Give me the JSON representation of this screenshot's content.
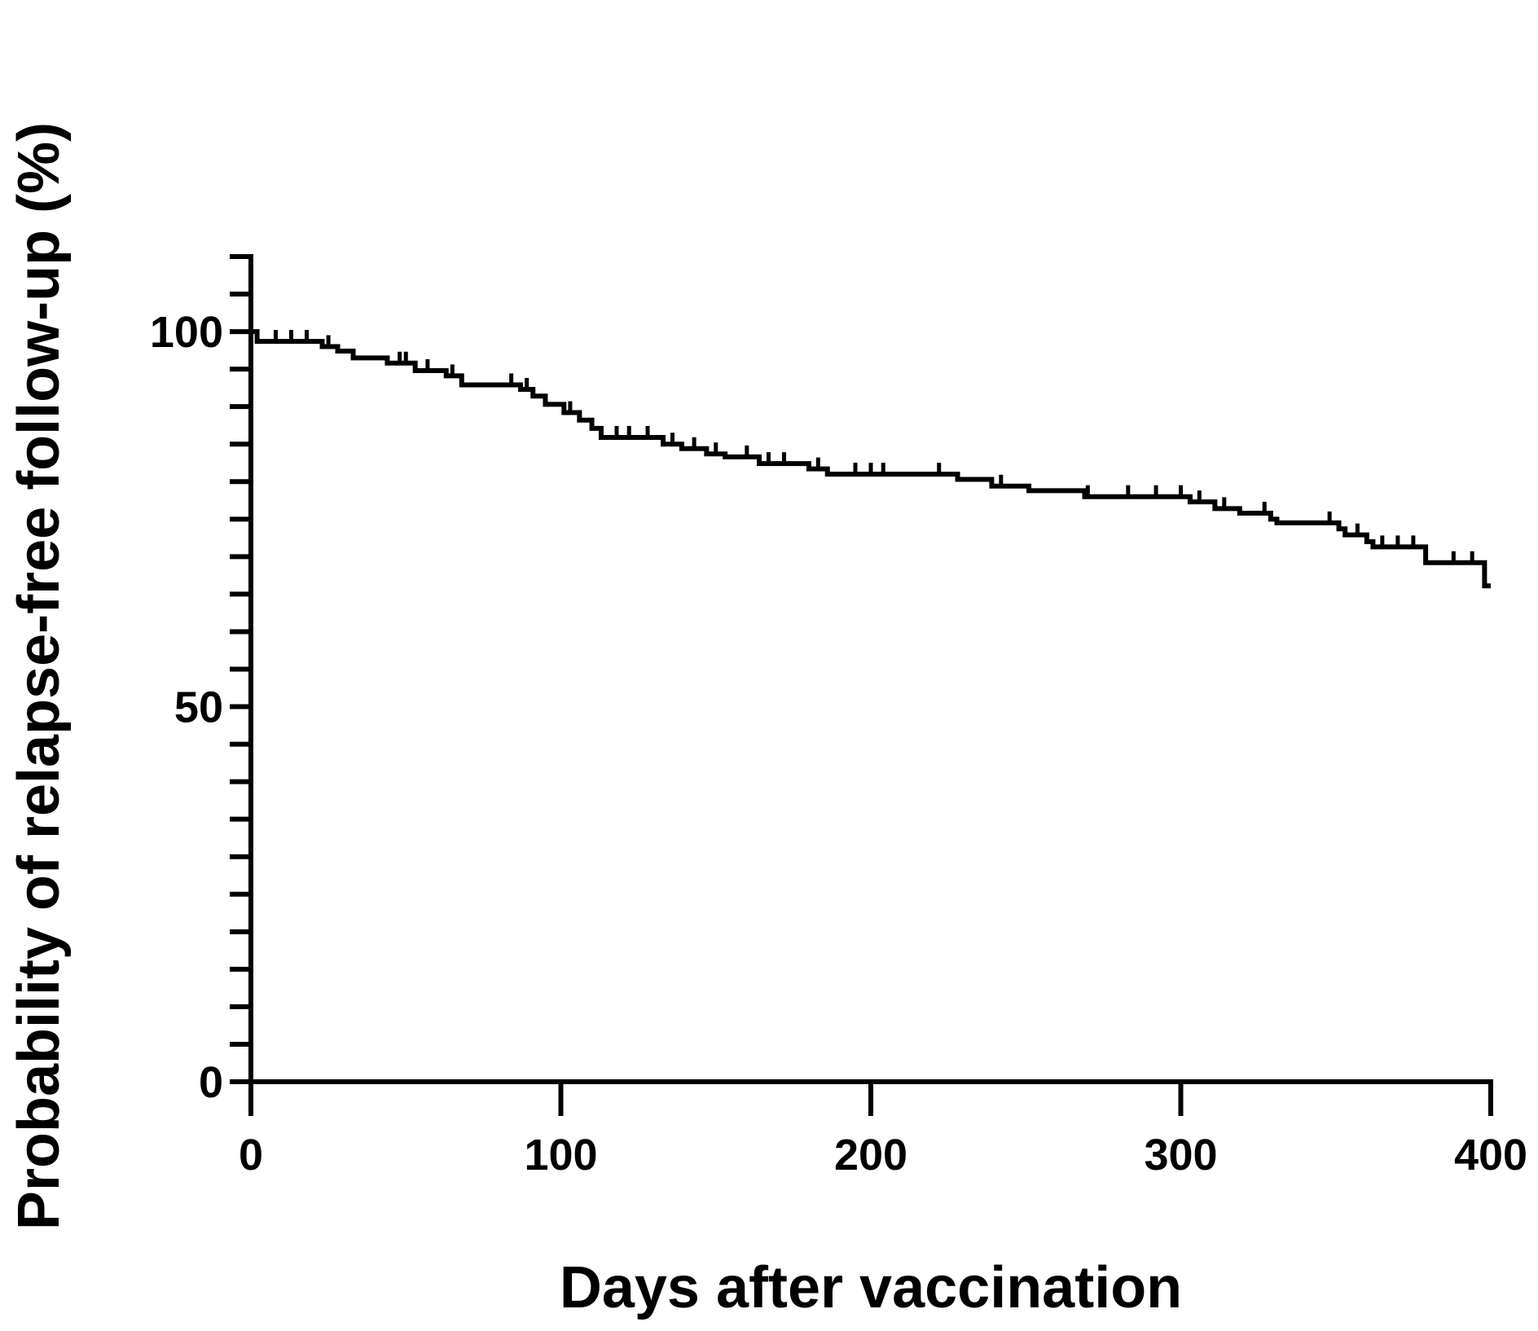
{
  "chart_data": {
    "type": "line",
    "step": "post",
    "x_label": "Days after vaccination",
    "y_label": "Probability of relapse-free follow-up (%)",
    "xlim": [
      0,
      400
    ],
    "xticks": [
      0,
      100,
      200,
      300,
      400
    ],
    "ylim": [
      0,
      110
    ],
    "yticks": [
      0,
      50,
      100
    ],
    "yminorticks": [
      5,
      10,
      15,
      20,
      25,
      30,
      35,
      40,
      45,
      55,
      60,
      65,
      70,
      75,
      80,
      85,
      90,
      95,
      105,
      110
    ],
    "x": [
      0,
      2,
      23,
      28,
      33,
      44,
      53,
      63,
      68,
      87,
      91,
      95,
      101,
      106,
      110,
      113,
      133,
      139,
      147,
      153,
      164,
      180,
      186,
      228,
      239,
      251,
      269,
      303,
      311,
      319,
      329,
      331,
      351,
      353,
      360,
      362,
      379,
      398,
      400
    ],
    "series": [
      {
        "color": "#000000",
        "values": [
          100,
          98.7,
          98.0,
          97.4,
          96.5,
          95.8,
          94.8,
          94.1,
          92.9,
          92.3,
          91.4,
          90.3,
          89.2,
          88.2,
          87.1,
          85.9,
          85.0,
          84.4,
          83.7,
          83.3,
          82.4,
          81.7,
          81.0,
          80.3,
          79.4,
          78.8,
          78.0,
          77.3,
          76.4,
          75.8,
          75.0,
          74.5,
          73.7,
          72.9,
          72.0,
          71.3,
          69.2,
          66.1,
          66.1
        ]
      }
    ],
    "censored": {
      "x": [
        8,
        13,
        18,
        25,
        48,
        50,
        57,
        65,
        84,
        89,
        103,
        118,
        122,
        128,
        136,
        143,
        150,
        160,
        167,
        172,
        183,
        195,
        200,
        204,
        222,
        242,
        270,
        283,
        292,
        300,
        306,
        314,
        327,
        348,
        357,
        365,
        370,
        375,
        388,
        394
      ],
      "values": [
        98.7,
        98.7,
        98.7,
        98.0,
        95.8,
        95.8,
        94.8,
        94.1,
        92.9,
        92.3,
        89.2,
        85.9,
        85.9,
        85.9,
        85.0,
        84.4,
        83.7,
        83.3,
        82.4,
        82.4,
        81.7,
        81.0,
        81.0,
        81.0,
        81.0,
        79.4,
        78.0,
        78.0,
        78.0,
        78.0,
        77.3,
        76.4,
        75.8,
        74.5,
        72.9,
        71.3,
        71.3,
        71.3,
        69.2,
        69.2
      ]
    }
  }
}
